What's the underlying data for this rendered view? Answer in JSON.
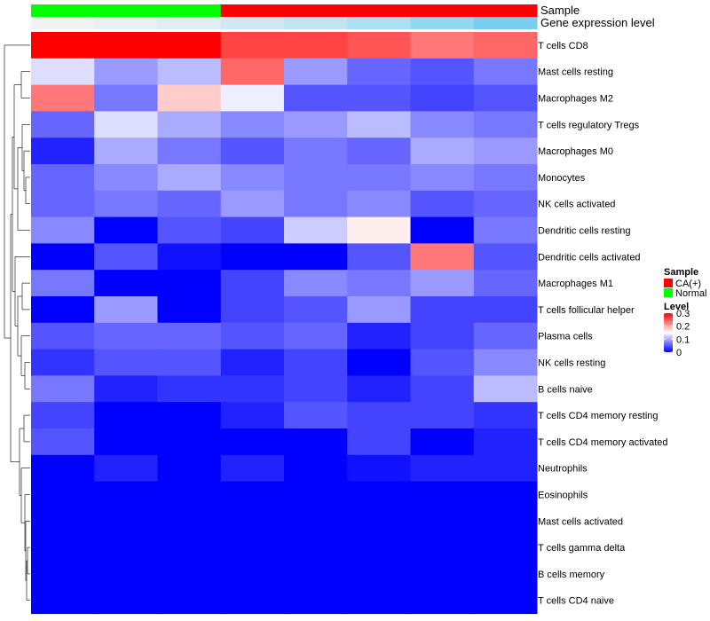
{
  "chart_data": {
    "type": "heatmap",
    "annotation_rows": [
      {
        "label": "Sample",
        "values": [
          "Normal",
          "Normal",
          "Normal",
          "CA(+)",
          "CA(+)",
          "CA(+)",
          "CA(+)",
          "CA(+)"
        ]
      },
      {
        "label": "Gene expression level",
        "values": [
          0.0,
          0.05,
          0.12,
          0.22,
          0.32,
          0.45,
          0.62,
          0.8
        ]
      }
    ],
    "rows": [
      "T cells CD8",
      "Mast cells resting",
      "Macrophages M2",
      "T cells regulatory  Tregs",
      "Macrophages M0",
      "Monocytes",
      "NK cells activated",
      "Dendritic cells resting",
      "Dendritic cells activated",
      "Macrophages M1",
      "T cells follicular helper",
      "Plasma cells",
      "NK cells resting",
      "B cells naive",
      "T cells CD4 memory resting",
      "T cells CD4 memory activated",
      "Neutrophils",
      "Eosinophils",
      "Mast cells activated",
      "T cells gamma delta",
      "B cells memory",
      "T cells CD4 naive"
    ],
    "values": [
      [
        0.3,
        0.3,
        0.3,
        0.26,
        0.26,
        0.25,
        0.23,
        0.24
      ],
      [
        0.13,
        0.09,
        0.11,
        0.24,
        0.09,
        0.06,
        0.05,
        0.07
      ],
      [
        0.23,
        0.07,
        0.18,
        0.14,
        0.05,
        0.05,
        0.04,
        0.05
      ],
      [
        0.06,
        0.13,
        0.1,
        0.08,
        0.09,
        0.11,
        0.08,
        0.07
      ],
      [
        0.02,
        0.1,
        0.07,
        0.05,
        0.07,
        0.06,
        0.1,
        0.09
      ],
      [
        0.06,
        0.08,
        0.1,
        0.08,
        0.07,
        0.07,
        0.08,
        0.07
      ],
      [
        0.06,
        0.07,
        0.06,
        0.09,
        0.07,
        0.08,
        0.05,
        0.06
      ],
      [
        0.08,
        0.0,
        0.05,
        0.04,
        0.12,
        0.16,
        0.0,
        0.07
      ],
      [
        0.0,
        0.05,
        0.01,
        0.0,
        0.0,
        0.05,
        0.23,
        0.05
      ],
      [
        0.07,
        0.0,
        0.0,
        0.04,
        0.08,
        0.07,
        0.09,
        0.06
      ],
      [
        0.0,
        0.09,
        0.0,
        0.04,
        0.05,
        0.09,
        0.04,
        0.04
      ],
      [
        0.05,
        0.06,
        0.06,
        0.05,
        0.06,
        0.02,
        0.04,
        0.06
      ],
      [
        0.03,
        0.05,
        0.05,
        0.02,
        0.04,
        0.0,
        0.05,
        0.08
      ],
      [
        0.07,
        0.02,
        0.03,
        0.03,
        0.04,
        0.02,
        0.04,
        0.11
      ],
      [
        0.04,
        0.0,
        0.0,
        0.02,
        0.05,
        0.04,
        0.04,
        0.03
      ],
      [
        0.05,
        0.0,
        0.0,
        0.0,
        0.0,
        0.04,
        0.0,
        0.02
      ],
      [
        0.0,
        0.02,
        0.0,
        0.02,
        0.0,
        0.01,
        0.02,
        0.02
      ],
      [
        0.0,
        0.0,
        0.0,
        0.0,
        0.0,
        0.0,
        0.0,
        0.0
      ],
      [
        0.0,
        0.0,
        0.0,
        0.0,
        0.0,
        0.0,
        0.0,
        0.0
      ],
      [
        0.0,
        0.0,
        0.0,
        0.0,
        0.0,
        0.0,
        0.0,
        0.0
      ],
      [
        0.0,
        0.0,
        0.0,
        0.0,
        0.0,
        0.0,
        0.0,
        0.0
      ],
      [
        0.0,
        0.0,
        0.0,
        0.0,
        0.0,
        0.0,
        0.0,
        0.0
      ]
    ],
    "color_range": [
      0,
      0.3
    ],
    "colors": {
      "low": "#0000FF",
      "mid": "#FFFFFF",
      "high": "#FF0000",
      "normal": "#00FF00",
      "ca": "#FF0000",
      "anno_low": "#F2F2F2",
      "anno_high": "#5BC6EF"
    },
    "legend": {
      "sample_title": "Sample",
      "sample_items": [
        {
          "label": "CA(+)",
          "color": "#FF0000"
        },
        {
          "label": "Normal",
          "color": "#00FF00"
        }
      ],
      "level_title": "Level",
      "level_ticks": [
        "0.3",
        "0.2",
        "0.1",
        "0"
      ],
      "level_tick_values": [
        0.3,
        0.2,
        0.1,
        0.0
      ],
      "placement": "right"
    },
    "dendrogram": "row clustering tree on left"
  }
}
